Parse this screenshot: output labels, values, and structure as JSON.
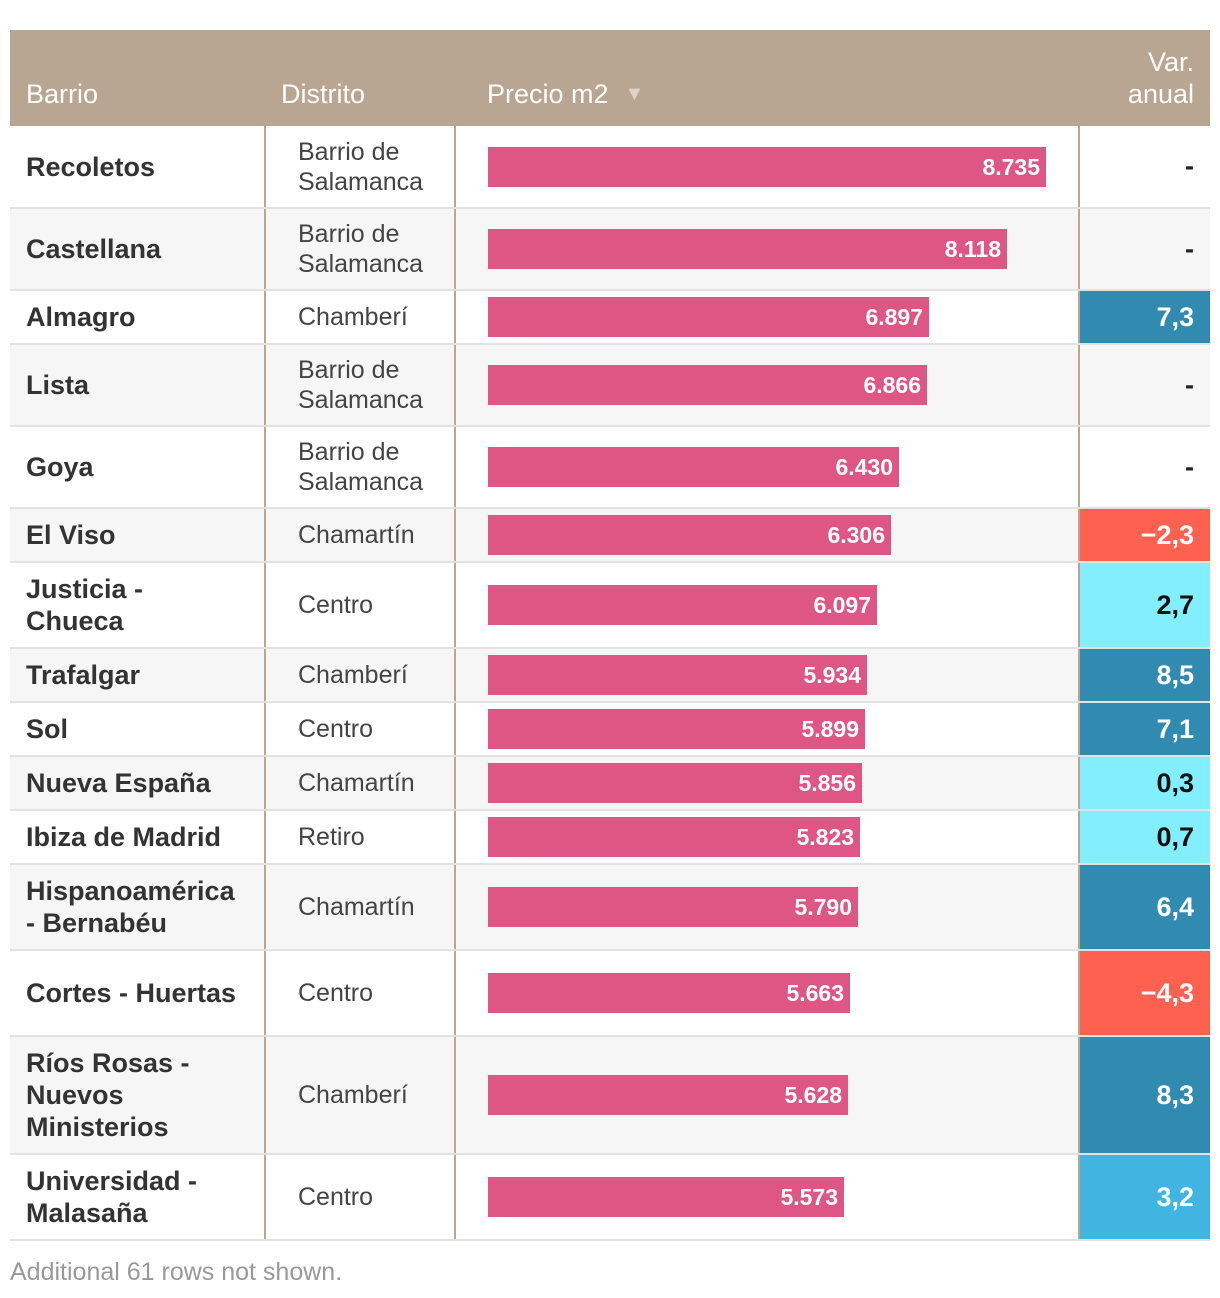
{
  "chart_data": {
    "type": "table",
    "columns": [
      "Barrio",
      "Distrito",
      "Precio m2",
      "Var. anual"
    ],
    "sort_indicator": "▼",
    "bar_max": 8735,
    "colors": {
      "header_bg": "#b8a693",
      "bar": "#de5683",
      "var_negative": "#fe6150",
      "var_low": "#83eefe",
      "var_mid": "#41b5e1",
      "var_high": "#318ab0"
    },
    "rows": [
      {
        "barrio": "Recoletos",
        "distrito": "Barrio de Salamanca",
        "precio": 8735,
        "precio_label": "8.735",
        "var": null,
        "var_label": "-"
      },
      {
        "barrio": "Castellana",
        "distrito": "Barrio de Salamanca",
        "precio": 8118,
        "precio_label": "8.118",
        "var": null,
        "var_label": "-"
      },
      {
        "barrio": "Almagro",
        "distrito": "Chamberí",
        "precio": 6897,
        "precio_label": "6.897",
        "var": 7.3,
        "var_label": "7,3"
      },
      {
        "barrio": "Lista",
        "distrito": "Barrio de Salamanca",
        "precio": 6866,
        "precio_label": "6.866",
        "var": null,
        "var_label": "-"
      },
      {
        "barrio": "Goya",
        "distrito": "Barrio de Salamanca",
        "precio": 6430,
        "precio_label": "6.430",
        "var": null,
        "var_label": "-"
      },
      {
        "barrio": "El Viso",
        "distrito": "Chamartín",
        "precio": 6306,
        "precio_label": "6.306",
        "var": -2.3,
        "var_label": "−2,3"
      },
      {
        "barrio": "Justicia - Chueca",
        "distrito": "Centro",
        "precio": 6097,
        "precio_label": "6.097",
        "var": 2.7,
        "var_label": "2,7"
      },
      {
        "barrio": "Trafalgar",
        "distrito": "Chamberí",
        "precio": 5934,
        "precio_label": "5.934",
        "var": 8.5,
        "var_label": "8,5"
      },
      {
        "barrio": "Sol",
        "distrito": "Centro",
        "precio": 5899,
        "precio_label": "5.899",
        "var": 7.1,
        "var_label": "7,1"
      },
      {
        "barrio": "Nueva España",
        "distrito": "Chamartín",
        "precio": 5856,
        "precio_label": "5.856",
        "var": 0.3,
        "var_label": "0,3"
      },
      {
        "barrio": "Ibiza de Madrid",
        "distrito": "Retiro",
        "precio": 5823,
        "precio_label": "5.823",
        "var": 0.7,
        "var_label": "0,7"
      },
      {
        "barrio": "Hispanoamérica - Bernabéu",
        "distrito": "Chamartín",
        "precio": 5790,
        "precio_label": "5.790",
        "var": 6.4,
        "var_label": "6,4"
      },
      {
        "barrio": "Cortes - Huertas",
        "distrito": "Centro",
        "precio": 5663,
        "precio_label": "5.663",
        "var": -4.3,
        "var_label": "−4,3"
      },
      {
        "barrio": "Ríos Rosas - Nuevos Ministerios",
        "distrito": "Chamberí",
        "precio": 5628,
        "precio_label": "5.628",
        "var": 8.3,
        "var_label": "8,3"
      },
      {
        "barrio": "Universidad - Malasaña",
        "distrito": "Centro",
        "precio": 5573,
        "precio_label": "5.573",
        "var": 3.2,
        "var_label": "3,2"
      }
    ],
    "footnote": "Additional 61 rows not shown."
  }
}
